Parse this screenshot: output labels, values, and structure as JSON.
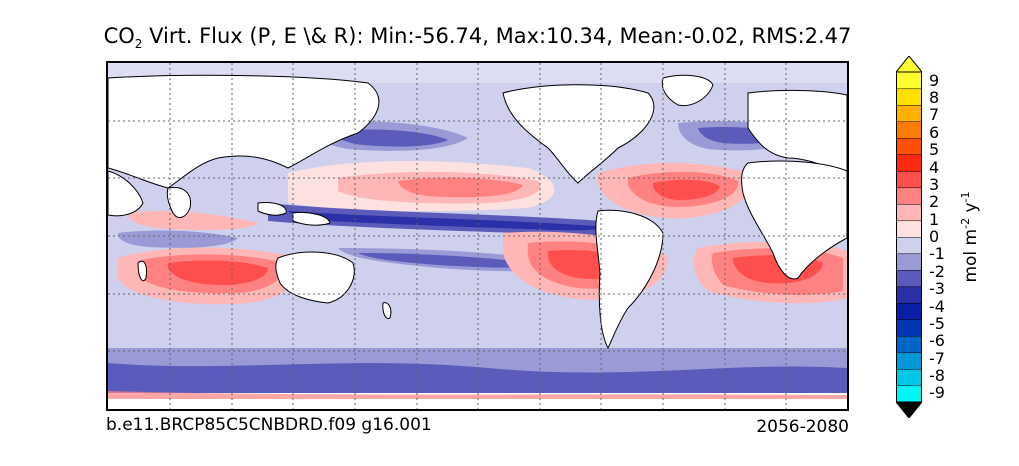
{
  "title": {
    "prefix": "CO",
    "sub": "2",
    "rest": " Virt. Flux (P, E \\& R): Min:-56.74, Max:10.34, Mean:-0.02, RMS:2.47"
  },
  "footer": {
    "case": "b.e11.BRCP85C5CNBDRD.f09 g16.001",
    "years": "2056-2080"
  },
  "colorbar": {
    "label_main": "mol m",
    "label_exp1": "-2",
    "label_mid": " y",
    "label_exp2": "-1",
    "ticks": [
      "9",
      "8",
      "7",
      "6",
      "5",
      "4",
      "3",
      "2",
      "1",
      "0",
      "-1",
      "-2",
      "-3",
      "-4",
      "-5",
      "-6",
      "-7",
      "-8",
      "-9"
    ],
    "colors": [
      "#00f6f6",
      "#00c8e6",
      "#0098d8",
      "#0066c8",
      "#0035b4",
      "#0a1ea6",
      "#2b2fa8",
      "#5a5bbb",
      "#9a9ad7",
      "#cfd0ed",
      "#fde0e0",
      "#ffb6b6",
      "#ff8181",
      "#ff4e4e",
      "#ff2a10",
      "#ff5000",
      "#ff7c00",
      "#ffb000",
      "#ffe000",
      "#ffff30"
    ]
  }
}
